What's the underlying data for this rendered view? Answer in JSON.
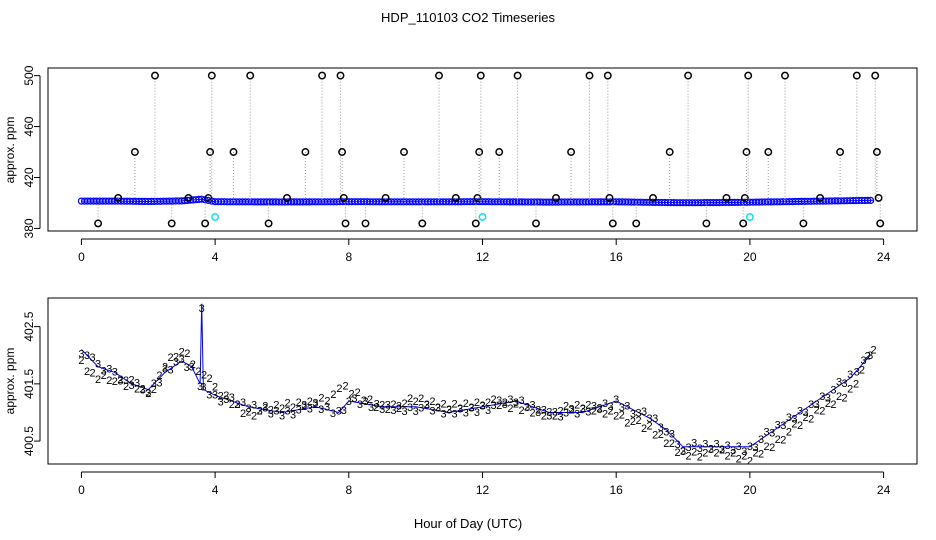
{
  "figure": {
    "title": "HDP_110103  CO2 Timeseries",
    "xlabel": "Hour of Day (UTC)"
  },
  "chart_data": [
    {
      "type": "scatter",
      "panel": "top",
      "ylabel": "approx. ppm",
      "xlim": [
        -1,
        25
      ],
      "ylim": [
        378,
        506
      ],
      "xticks": [
        0,
        4,
        8,
        12,
        16,
        20,
        24
      ],
      "yticks": [
        380,
        420,
        460,
        500
      ],
      "ytick_labels": [
        "380",
        "420",
        "460",
        "500"
      ],
      "grid": false,
      "series": [
        {
          "color": "#0000ff",
          "baseline_points": [
            [
              0.0,
              401.5
            ],
            [
              1.0,
              401.5
            ],
            [
              2.0,
              401.2
            ],
            [
              3.0,
              401.6
            ],
            [
              3.6,
              403.0
            ],
            [
              4.0,
              401.0
            ],
            [
              6.0,
              400.8
            ],
            [
              8.0,
              401.0
            ],
            [
              10.0,
              400.9
            ],
            [
              12.0,
              401.0
            ],
            [
              14.0,
              400.7
            ],
            [
              16.0,
              400.9
            ],
            [
              17.0,
              400.5
            ],
            [
              18.0,
              400.2
            ],
            [
              19.0,
              400.3
            ],
            [
              20.0,
              400.6
            ],
            [
              21.0,
              401.0
            ],
            [
              22.0,
              401.4
            ],
            [
              23.0,
              401.8
            ],
            [
              23.7,
              402.1
            ]
          ]
        },
        {
          "color": "#000000",
          "marker": "circle",
          "points": [
            [
              0.5,
              384
            ],
            [
              1.1,
              404
            ],
            [
              1.6,
              440
            ],
            [
              2.2,
              500
            ],
            [
              2.7,
              384
            ],
            [
              3.2,
              404
            ],
            [
              3.7,
              384
            ],
            [
              3.8,
              404
            ],
            [
              3.85,
              440
            ],
            [
              3.9,
              500
            ],
            [
              4.55,
              440
            ],
            [
              5.05,
              500
            ],
            [
              5.6,
              384
            ],
            [
              6.15,
              404
            ],
            [
              6.7,
              440
            ],
            [
              7.2,
              500
            ],
            [
              7.75,
              500
            ],
            [
              7.8,
              440
            ],
            [
              7.85,
              404
            ],
            [
              7.9,
              384
            ],
            [
              8.5,
              384
            ],
            [
              9.1,
              404
            ],
            [
              9.65,
              440
            ],
            [
              10.2,
              384
            ],
            [
              10.7,
              500
            ],
            [
              11.2,
              404
            ],
            [
              11.8,
              384
            ],
            [
              11.85,
              404
            ],
            [
              11.9,
              440
            ],
            [
              11.95,
              500
            ],
            [
              12.5,
              440
            ],
            [
              13.05,
              500
            ],
            [
              13.6,
              384
            ],
            [
              14.2,
              404
            ],
            [
              14.65,
              440
            ],
            [
              15.2,
              500
            ],
            [
              15.75,
              500
            ],
            [
              15.8,
              404
            ],
            [
              15.9,
              384
            ],
            [
              16.6,
              384
            ],
            [
              17.1,
              404
            ],
            [
              17.6,
              440
            ],
            [
              18.15,
              500
            ],
            [
              18.7,
              384
            ],
            [
              19.3,
              404
            ],
            [
              19.8,
              384
            ],
            [
              19.85,
              404
            ],
            [
              19.9,
              440
            ],
            [
              19.95,
              500
            ],
            [
              20.55,
              440
            ],
            [
              21.05,
              500
            ],
            [
              21.6,
              384
            ],
            [
              22.1,
              404
            ],
            [
              22.7,
              440
            ],
            [
              23.2,
              500
            ],
            [
              23.75,
              500
            ],
            [
              23.8,
              440
            ],
            [
              23.85,
              404
            ],
            [
              23.9,
              384
            ]
          ]
        },
        {
          "color": "#00e5ee",
          "marker": "circle",
          "points": [
            [
              4.0,
              389
            ],
            [
              12.0,
              389
            ],
            [
              20.0,
              389
            ]
          ]
        }
      ]
    },
    {
      "type": "scatter",
      "panel": "bottom",
      "ylabel": "approx. ppm",
      "xlim": [
        -1,
        25
      ],
      "ylim": [
        400.1,
        403.0
      ],
      "xticks": [
        0,
        4,
        8,
        12,
        16,
        20,
        24
      ],
      "yticks": [
        400.5,
        401.5,
        402.5
      ],
      "ytick_labels": [
        "400.5",
        "401.5",
        "402.5"
      ],
      "grid": false,
      "series": [
        {
          "color": "#0000ff",
          "marker_label": "3",
          "points": [
            [
              0.0,
              402.1
            ],
            [
              0.5,
              401.8
            ],
            [
              1.0,
              401.7
            ],
            [
              1.5,
              401.5
            ],
            [
              2.0,
              401.4
            ],
            [
              2.5,
              401.7
            ],
            [
              3.0,
              401.9
            ],
            [
              3.3,
              401.8
            ],
            [
              3.55,
              401.5
            ],
            [
              3.6,
              402.9
            ],
            [
              3.65,
              401.4
            ],
            [
              4.0,
              401.3
            ],
            [
              5.0,
              401.1
            ],
            [
              6.0,
              401.0
            ],
            [
              7.0,
              401.1
            ],
            [
              7.7,
              401.0
            ],
            [
              8.0,
              401.2
            ],
            [
              9.0,
              401.1
            ],
            [
              10.0,
              401.1
            ],
            [
              11.0,
              401.0
            ],
            [
              12.0,
              401.1
            ],
            [
              13.0,
              401.2
            ],
            [
              14.0,
              401.0
            ],
            [
              15.0,
              401.0
            ],
            [
              16.0,
              401.2
            ],
            [
              17.0,
              400.9
            ],
            [
              17.5,
              400.7
            ],
            [
              18.0,
              400.4
            ],
            [
              19.0,
              400.4
            ],
            [
              20.0,
              400.4
            ],
            [
              21.0,
              400.8
            ],
            [
              22.0,
              401.2
            ],
            [
              23.0,
              401.6
            ],
            [
              23.6,
              402.0
            ]
          ]
        },
        {
          "color": "#00cd00",
          "marker_label": "2",
          "points": [
            [
              0.0,
              401.9
            ],
            [
              0.5,
              401.6
            ],
            [
              1.0,
              401.6
            ],
            [
              1.5,
              401.5
            ],
            [
              2.0,
              401.3
            ],
            [
              2.5,
              401.8
            ],
            [
              3.0,
              402.1
            ],
            [
              3.5,
              401.8
            ],
            [
              4.0,
              401.4
            ],
            [
              5.0,
              401.0
            ],
            [
              6.0,
              401.1
            ],
            [
              7.0,
              401.2
            ],
            [
              7.9,
              401.4
            ],
            [
              9.0,
              401.1
            ],
            [
              10.0,
              401.2
            ],
            [
              11.0,
              401.1
            ],
            [
              12.0,
              401.2
            ],
            [
              13.0,
              401.1
            ],
            [
              14.0,
              401.0
            ],
            [
              15.0,
              401.1
            ],
            [
              16.0,
              401.0
            ],
            [
              17.0,
              400.7
            ],
            [
              18.0,
              400.3
            ],
            [
              19.0,
              400.3
            ],
            [
              20.0,
              400.2
            ],
            [
              21.0,
              400.6
            ],
            [
              22.0,
              401.0
            ],
            [
              23.0,
              401.4
            ],
            [
              23.7,
              402.1
            ]
          ]
        }
      ]
    }
  ]
}
